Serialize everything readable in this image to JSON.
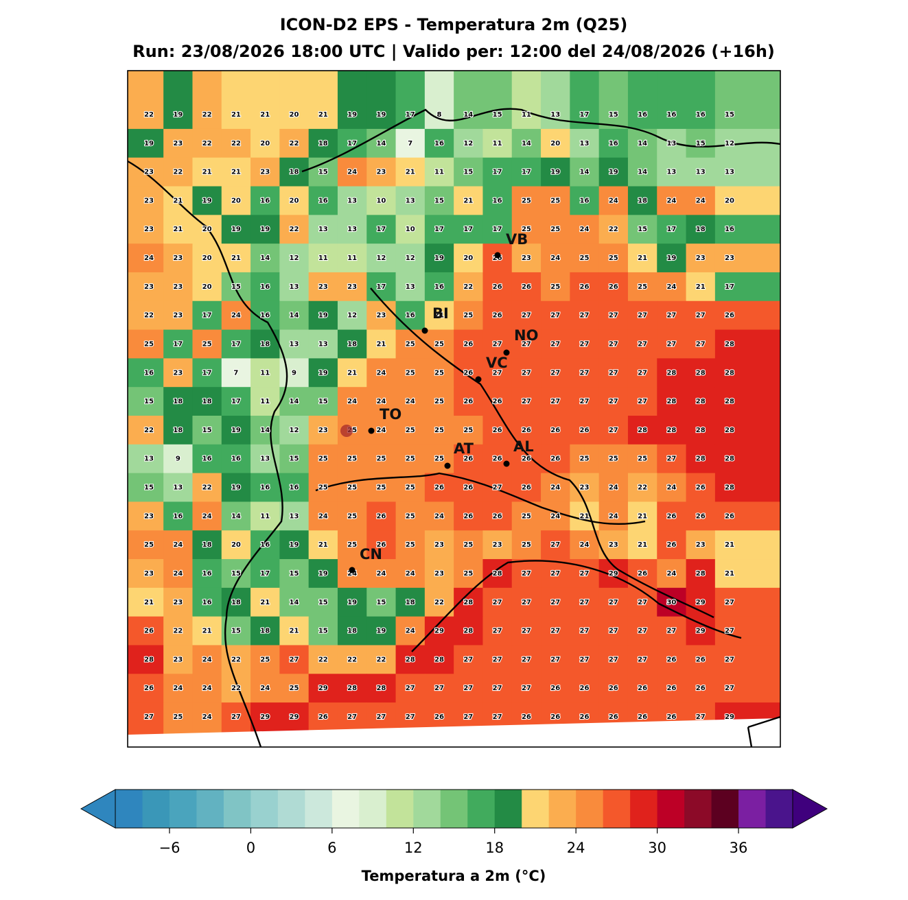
{
  "title": [
    "ICON-D2 EPS - Temperatura 2m (Q25)",
    "Run: 23/08/2026 18:00 UTC | Valido per: 12:00 del 24/08/2026 (+16h)"
  ],
  "map": {
    "values": [
      [
        22,
        19,
        22,
        21,
        21,
        20,
        21,
        19,
        19,
        17,
        8,
        14,
        15,
        11,
        13,
        17,
        15,
        16,
        16,
        16,
        15
      ],
      [
        19,
        23,
        22,
        22,
        20,
        22,
        18,
        17,
        14,
        7,
        16,
        12,
        11,
        14,
        20,
        13,
        16,
        14,
        13,
        15,
        12
      ],
      [
        23,
        22,
        21,
        21,
        23,
        18,
        15,
        24,
        23,
        21,
        11,
        15,
        17,
        17,
        19,
        14,
        19,
        14,
        13,
        13,
        13
      ],
      [
        23,
        21,
        19,
        20,
        16,
        20,
        16,
        13,
        10,
        13,
        15,
        21,
        16,
        25,
        25,
        16,
        24,
        18,
        24,
        24,
        20
      ],
      [
        23,
        21,
        20,
        19,
        19,
        22,
        13,
        13,
        17,
        10,
        17,
        17,
        17,
        25,
        25,
        24,
        22,
        15,
        17,
        18,
        16
      ],
      [
        24,
        23,
        20,
        21,
        14,
        12,
        11,
        11,
        12,
        12,
        19,
        20,
        26,
        23,
        24,
        25,
        25,
        21,
        19,
        23,
        23
      ],
      [
        23,
        23,
        20,
        15,
        16,
        13,
        23,
        23,
        17,
        13,
        16,
        22,
        26,
        26,
        25,
        26,
        26,
        25,
        24,
        21,
        17
      ],
      [
        22,
        23,
        17,
        24,
        16,
        14,
        19,
        12,
        23,
        16,
        21,
        25,
        26,
        27,
        27,
        27,
        27,
        27,
        27,
        27,
        26
      ],
      [
        25,
        17,
        25,
        17,
        18,
        13,
        13,
        18,
        21,
        25,
        25,
        26,
        27,
        27,
        27,
        27,
        27,
        27,
        27,
        27,
        28
      ],
      [
        16,
        23,
        17,
        7,
        11,
        9,
        19,
        21,
        24,
        25,
        25,
        26,
        27,
        27,
        27,
        27,
        27,
        27,
        28,
        28,
        28
      ],
      [
        15,
        18,
        18,
        17,
        11,
        14,
        15,
        24,
        24,
        24,
        25,
        26,
        26,
        27,
        27,
        27,
        27,
        27,
        28,
        28,
        28
      ],
      [
        22,
        18,
        15,
        19,
        14,
        12,
        23,
        25,
        24,
        25,
        25,
        25,
        26,
        26,
        26,
        26,
        27,
        28,
        28,
        28,
        28
      ],
      [
        13,
        9,
        16,
        16,
        13,
        15,
        25,
        25,
        25,
        25,
        25,
        26,
        26,
        26,
        26,
        25,
        25,
        25,
        27,
        28,
        28
      ],
      [
        15,
        13,
        22,
        19,
        16,
        16,
        25,
        25,
        25,
        25,
        26,
        26,
        27,
        26,
        24,
        23,
        24,
        22,
        24,
        26,
        28
      ],
      [
        23,
        16,
        24,
        14,
        11,
        13,
        24,
        25,
        26,
        25,
        24,
        26,
        26,
        25,
        24,
        21,
        24,
        21,
        26,
        26,
        26
      ],
      [
        25,
        24,
        18,
        20,
        16,
        19,
        21,
        25,
        26,
        25,
        23,
        25,
        23,
        25,
        27,
        24,
        23,
        21,
        26,
        23,
        21
      ],
      [
        23,
        24,
        16,
        15,
        17,
        15,
        19,
        24,
        24,
        24,
        23,
        25,
        28,
        27,
        27,
        27,
        29,
        26,
        24,
        28,
        21
      ],
      [
        21,
        23,
        16,
        18,
        21,
        14,
        15,
        19,
        15,
        18,
        22,
        28,
        27,
        27,
        27,
        27,
        27,
        27,
        30,
        29,
        27
      ],
      [
        26,
        22,
        21,
        15,
        18,
        21,
        15,
        18,
        19,
        24,
        29,
        28,
        27,
        27,
        27,
        27,
        27,
        27,
        27,
        29,
        27
      ],
      [
        28,
        23,
        24,
        22,
        25,
        27,
        22,
        22,
        22,
        28,
        28,
        27,
        27,
        27,
        27,
        27,
        27,
        27,
        26,
        26,
        27
      ],
      [
        26,
        24,
        24,
        22,
        24,
        25,
        29,
        28,
        28,
        27,
        27,
        27,
        27,
        27,
        26,
        26,
        26,
        26,
        26,
        26,
        27
      ],
      [
        27,
        25,
        24,
        27,
        29,
        29,
        26,
        27,
        27,
        27,
        26,
        27,
        27,
        26,
        26,
        26,
        26,
        26,
        26,
        27,
        29
      ]
    ],
    "cities": [
      "VB",
      "BI",
      "NO",
      "VC",
      "TO",
      "AT",
      "AL",
      "CN"
    ]
  },
  "colorbar": {
    "label": "Temperatura a 2m (°C)",
    "lim": [
      -10,
      40
    ],
    "ticks": [
      {
        "value": -6,
        "label": "−6"
      },
      0,
      6,
      12,
      18,
      24,
      30,
      36
    ],
    "colors": [
      "#2f86be",
      "#3a97b8",
      "#4aa4bd",
      "#62b2c1",
      "#80c4c5",
      "#99d1cf",
      "#b0dbd4",
      "#cce8dc",
      "#e9f5e1",
      "#d9efcf",
      "#c2e39a",
      "#a1d99b",
      "#74c476",
      "#41ab5d",
      "#238b45",
      "#fdd572",
      "#fbad4f",
      "#f98b3c",
      "#f4582b",
      "#e0221c",
      "#bd0026",
      "#8c0a28",
      "#5c0020",
      "#7b1fa2",
      "#4a148c"
    ],
    "under": "#2f86be",
    "over": "#3f007d"
  }
}
